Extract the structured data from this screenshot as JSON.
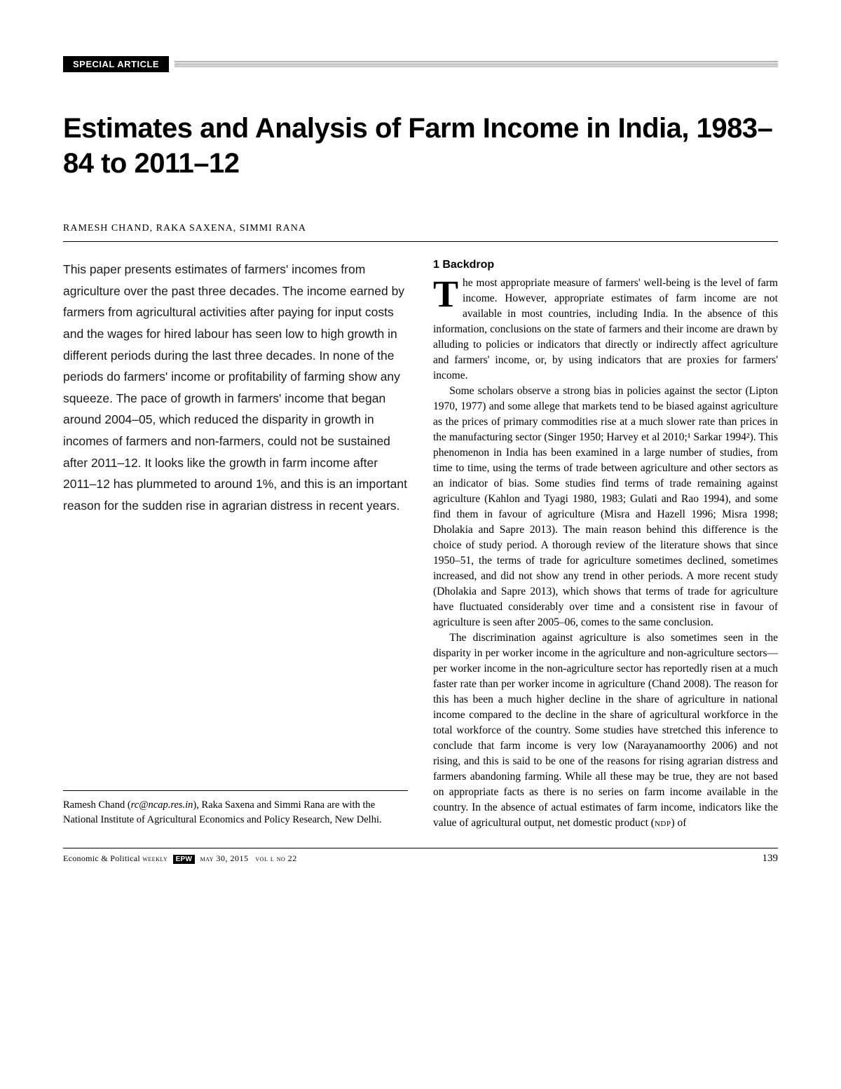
{
  "section_label": "SPECIAL ARTICLE",
  "title": "Estimates and Analysis of Farm Income in India, 1983–84 to 2011–12",
  "authors": "RAMESH CHAND, RAKA SAXENA, SIMMI RANA",
  "abstract": "This paper presents estimates of farmers' incomes from agriculture over the past three decades. The income earned by farmers from agricultural activities after paying for input costs and the wages for hired labour has seen low to high growth in different periods during the last three decades. In none of the periods do farmers' income or profitability of farming show any squeeze. The pace of growth in farmers' income that began around 2004–05, which reduced the disparity in growth in incomes of farmers and non-farmers, could not be sustained after 2011–12. It looks like the growth in farm income after 2011–12 has plummeted to around 1%, and this is an important reason for the sudden rise in agrarian distress in recent years.",
  "affiliation": {
    "prefix": "Ramesh Chand (",
    "email": "rc@ncap.res.in",
    "suffix": "), Raka Saxena and Simmi Rana are with the National Institute of Agricultural Economics and Policy Research, New Delhi."
  },
  "section_heading": "1  Backdrop",
  "body": {
    "dropcap": "T",
    "p1_rest": "he most appropriate measure of farmers' well-being is the level of farm income. However, appropriate estimates of farm income are not available in most countries, including India. In the absence of this information, conclusions on the state of farmers and their income are drawn by alluding to policies or indicators that directly or indirectly affect agriculture and farmers' income, or, by using indicators that are proxies for farmers' income.",
    "p2": "Some scholars observe a strong bias in policies against the sector (Lipton 1970, 1977) and some allege that markets tend to be biased against agriculture as the prices of primary commodities rise at a much slower rate than prices in the manufacturing sector (Singer 1950; Harvey et al 2010;¹ Sarkar 1994²). This phenomenon in India has been examined in a large number of studies, from time to time, using the terms of trade between agriculture and other sectors as an indicator of bias. Some studies find terms of trade remaining against agriculture (Kahlon and Tyagi 1980, 1983; Gulati and Rao 1994), and some find them in favour of agriculture (Misra and Hazell 1996; Misra 1998; Dholakia and Sapre 2013). The main reason behind this difference is the choice of study period. A thorough review of the literature shows that since 1950–51, the terms of trade for agriculture sometimes declined, sometimes increased, and did not show any trend in other periods. A more recent study (Dholakia and Sapre 2013), which shows that terms of trade for agriculture have fluctuated considerably over time and a consistent rise in favour of agriculture is seen after 2005–06, comes to the same conclusion.",
    "p3_part1": "The discrimination against agriculture is also sometimes seen in the disparity in per worker income in the agriculture and non-agriculture sectors—per worker income in the non-agriculture sector has reportedly risen at a much faster rate than per worker income in agriculture (Chand 2008). The reason for this has been a much higher decline in the share of agriculture in national income compared to the decline in the share of agricultural workforce in the total workforce of the country. Some studies have stretched this inference to conclude that farm income is very low (Narayanamoorthy 2006) and not rising, and this is said to be one of the reasons for rising agrarian distress and farmers abandoning farming. While all these may be true, they are not based on appropriate facts as there is no series on farm income available in the country. In the absence of actual estimates of farm income, indicators like the value of agricultural output, net domestic product (",
    "p3_ndp": "ndp",
    "p3_part2": ") of"
  },
  "footer": {
    "journal": "Economic & Political ",
    "weekly": "weekly",
    "epw": "EPW",
    "date": "may 30, 2015",
    "vol": "vol l no 22",
    "page": "139"
  },
  "style": {
    "page_bg": "#ffffff",
    "text_color": "#000000",
    "title_fontsize": 40,
    "authors_fontsize": 14,
    "abstract_fontsize": 17.5,
    "body_fontsize": 15.5,
    "heading_fontsize": 16,
    "footer_fontsize": 12,
    "dropcap_fontsize": 54
  }
}
